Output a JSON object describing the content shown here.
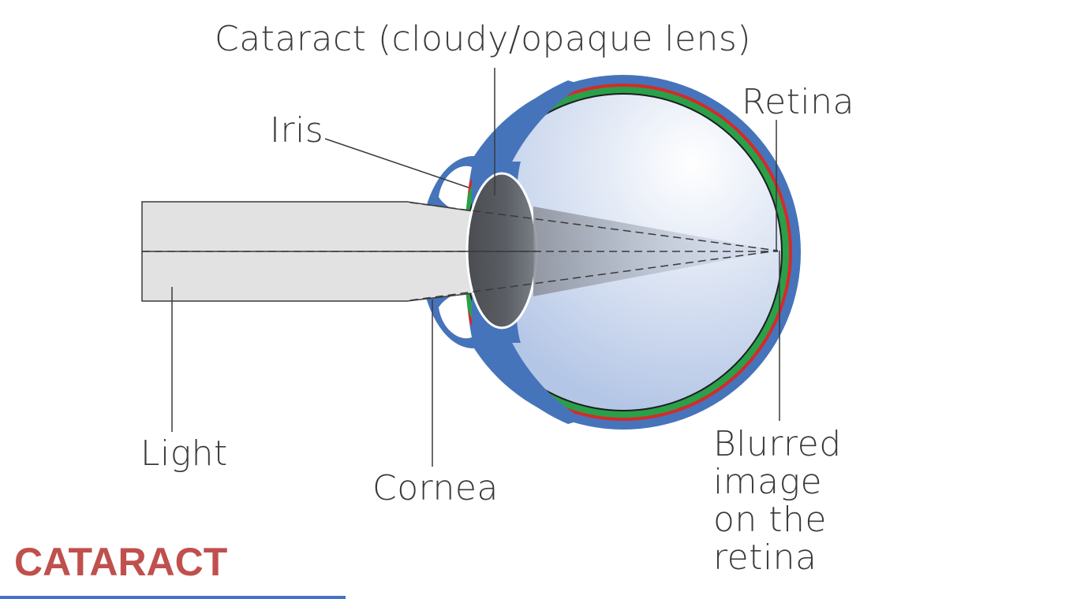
{
  "title": "CATARACT",
  "labels": {
    "cataract": "Cataract (cloudy/opaque lens)",
    "iris": "Iris",
    "retina": "Retina",
    "light": "Light",
    "cornea": "Cornea",
    "blurred": "Blurred image on the retina"
  },
  "colors": {
    "sclera": "#4674bb",
    "retina_red": "#d62a2a",
    "retina_green": "#2aa04a",
    "title": "#c0504d",
    "light_beam": "#e2e2e2"
  }
}
